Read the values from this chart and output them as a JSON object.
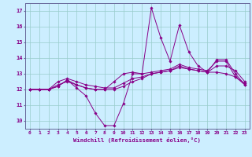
{
  "xlabel": "Windchill (Refroidissement éolien,°C)",
  "bg_color": "#cceeff",
  "line_color": "#880088",
  "grid_color": "#99cccc",
  "axis_color": "#666699",
  "x_ticks": [
    0,
    1,
    2,
    3,
    4,
    5,
    6,
    7,
    8,
    9,
    10,
    11,
    12,
    13,
    14,
    15,
    16,
    17,
    18,
    19,
    20,
    21,
    22,
    23
  ],
  "y_ticks": [
    10,
    11,
    12,
    13,
    14,
    15,
    16,
    17
  ],
  "xlim": [
    -0.5,
    23.5
  ],
  "ylim": [
    9.5,
    17.5
  ],
  "series": [
    [
      12.0,
      12.0,
      12.0,
      12.2,
      12.6,
      12.1,
      11.6,
      10.5,
      9.7,
      9.7,
      11.1,
      13.0,
      13.0,
      17.2,
      15.3,
      13.8,
      16.1,
      14.4,
      13.5,
      13.1,
      13.9,
      13.9,
      13.0,
      12.3
    ],
    [
      12.0,
      12.0,
      12.0,
      12.2,
      12.6,
      12.3,
      12.1,
      12.0,
      12.0,
      12.0,
      12.2,
      12.5,
      12.7,
      13.0,
      13.1,
      13.2,
      13.4,
      13.3,
      13.2,
      13.1,
      13.1,
      13.0,
      12.8,
      12.4
    ],
    [
      12.0,
      12.0,
      12.0,
      12.5,
      12.7,
      12.5,
      12.3,
      12.2,
      12.1,
      12.1,
      12.4,
      12.7,
      12.8,
      13.0,
      13.1,
      13.2,
      13.5,
      13.3,
      13.2,
      13.1,
      13.5,
      13.5,
      13.2,
      12.5
    ],
    [
      12.0,
      12.0,
      12.0,
      12.3,
      12.5,
      12.3,
      12.1,
      12.0,
      12.0,
      12.5,
      13.0,
      13.1,
      13.0,
      13.1,
      13.2,
      13.3,
      13.6,
      13.4,
      13.3,
      13.2,
      13.8,
      13.8,
      12.8,
      12.3
    ]
  ]
}
